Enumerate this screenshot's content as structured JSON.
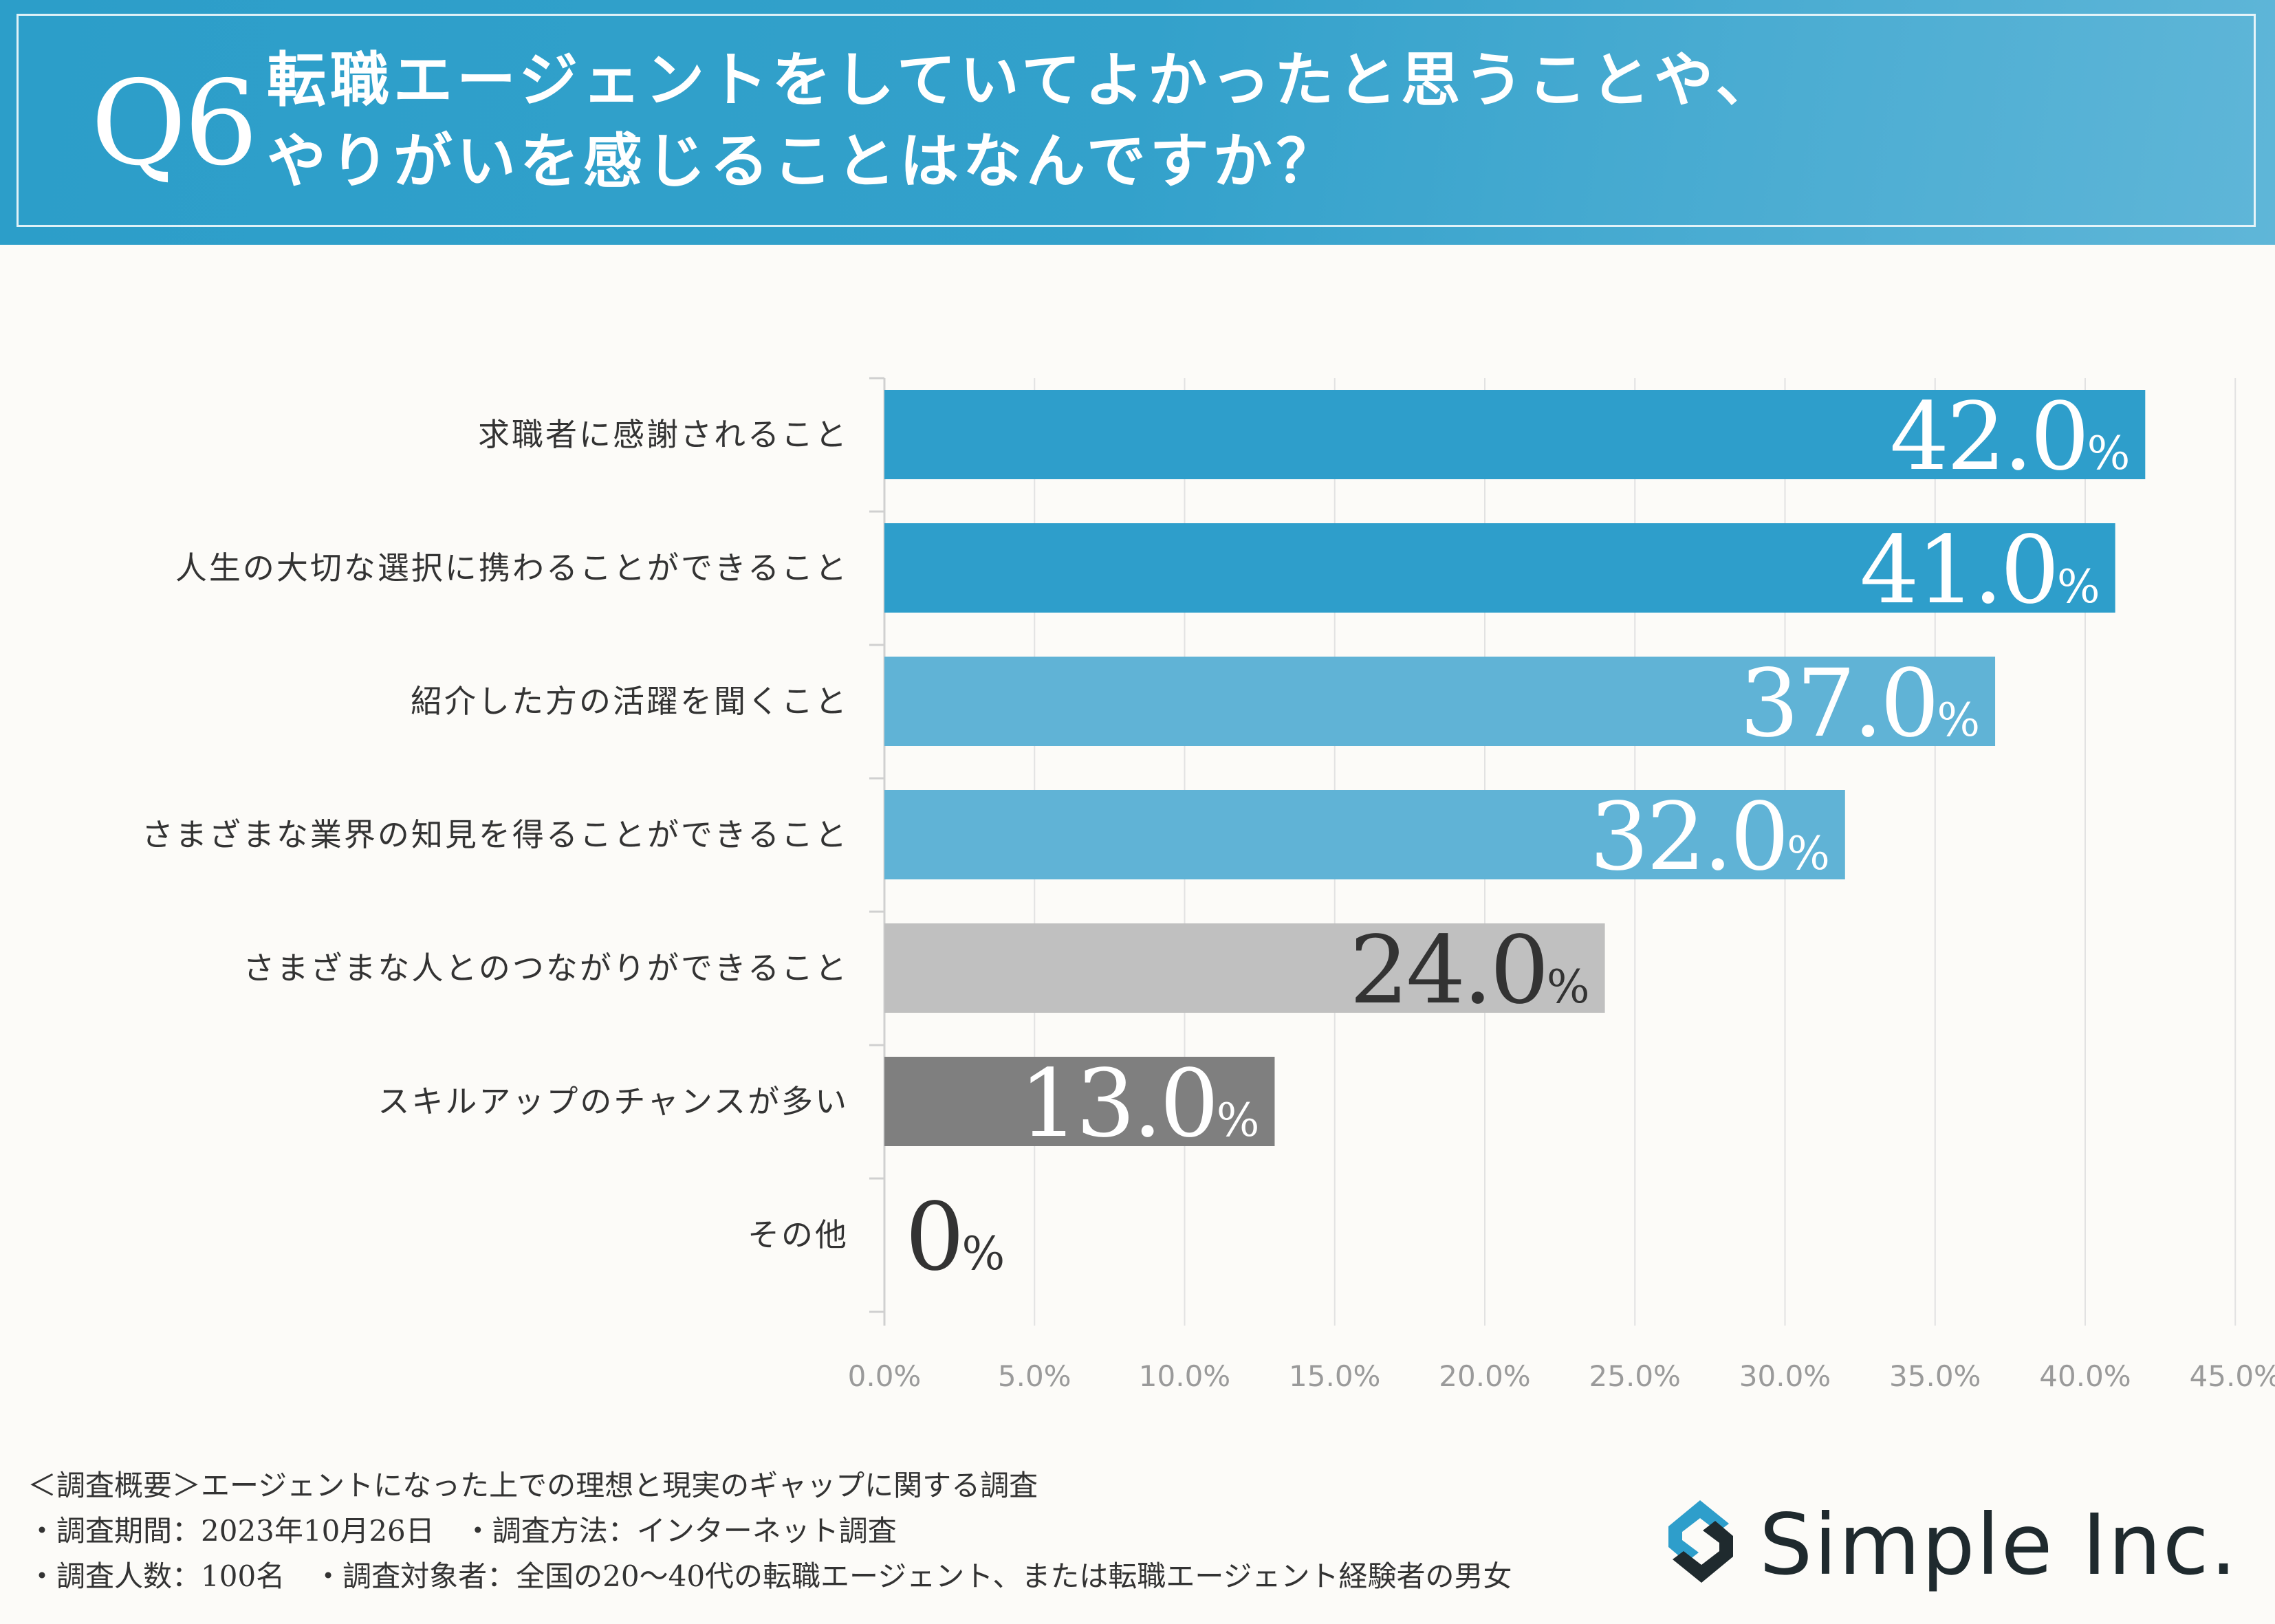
{
  "header": {
    "q_label": "Q6",
    "title_line1": "転職エージェントをしていてよかったと思うことや、",
    "title_line2": "やりがいを感じることはなんですか？"
  },
  "chart_data": {
    "type": "bar",
    "orientation": "horizontal",
    "categories": [
      "求職者に感謝されること",
      "人生の大切な選択に携わることができること",
      "紹介した方の活躍を聞くこと",
      "さまざまな業界の知見を得ることができること",
      "さまざまな人とのつながりができること",
      "スキルアップのチャンスが多い",
      "その他"
    ],
    "values": [
      42.0,
      41.0,
      37.0,
      32.0,
      24.0,
      13.0,
      0
    ],
    "value_labels": [
      "42.0",
      "41.0",
      "37.0",
      "32.0",
      "24.0",
      "13.0",
      "0"
    ],
    "value_unit": "%",
    "bar_colors": [
      "#2e9ecb",
      "#2e9ecb",
      "#60b3d6",
      "#60b3d6",
      "#c0c0c0",
      "#7f7f7f",
      "#7f7f7f"
    ],
    "label_colors": [
      "#ffffff",
      "#ffffff",
      "#ffffff",
      "#ffffff",
      "#333333",
      "#ffffff",
      "#333333"
    ],
    "xlim": [
      0,
      45
    ],
    "xticks": [
      "0.0%",
      "5.0%",
      "10.0%",
      "15.0%",
      "20.0%",
      "25.0%",
      "30.0%",
      "35.0%",
      "40.0%",
      "45.0%"
    ],
    "grid": true
  },
  "footer": {
    "line1": "＜調査概要＞エージェントになった上での理想と現実のギャップに関する調査",
    "line2": "・調査期間：2023年10月26日　・調査方法：インターネット調査",
    "line3": "・調査人数：100名　・調査対象者：全国の20〜40代の転職エージェント、または転職エージェント経験者の男女"
  },
  "logo": {
    "text": "Simple Inc.",
    "icon": "simple-logo-icon",
    "icon_color": "#2e9ecb"
  }
}
